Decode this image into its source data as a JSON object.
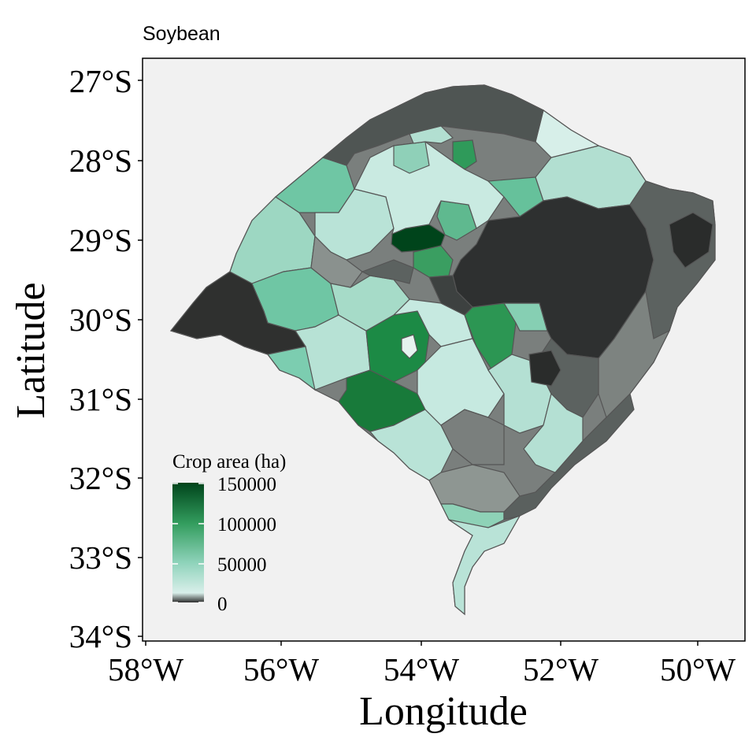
{
  "title": "Soybean",
  "axes": {
    "x_label": "Longitude",
    "y_label": "Latitude",
    "x_ticks": [
      "58°W",
      "56°W",
      "54°W",
      "52°W",
      "50°W"
    ],
    "y_ticks": [
      "27°S",
      "28°S",
      "29°S",
      "30°S",
      "31°S",
      "32°S",
      "33°S",
      "34°S"
    ],
    "x_range": [
      -58,
      -49.5
    ],
    "y_range": [
      -34,
      -26.6
    ]
  },
  "legend": {
    "title": "Crop area (ha)",
    "ticks": [
      "150000",
      "100000",
      "50000",
      "0"
    ],
    "colors": {
      "zero": "#2e2e2e",
      "low": "#d4ece6",
      "mid": "#7fcdb0",
      "high": "#2f9a5a",
      "max": "#00441b"
    }
  },
  "colors": {
    "panel_background": "#f1f1f1",
    "region_border": "#555555"
  }
}
